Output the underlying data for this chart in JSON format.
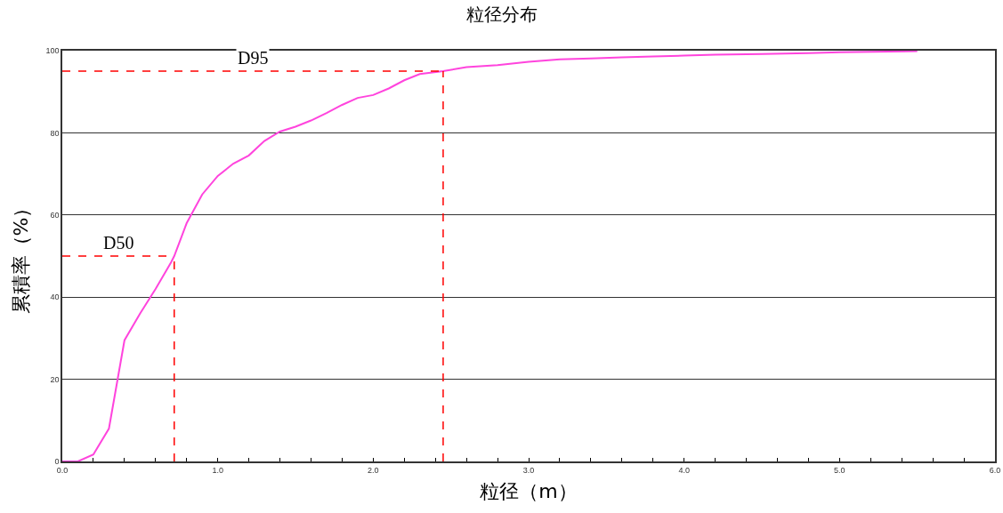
{
  "chart_data": {
    "type": "line",
    "title": "粒径分布",
    "xlabel": "粒径（m）",
    "ylabel": "累積率（%）",
    "x": [
      0,
      0.1,
      0.2,
      0.3,
      0.4,
      0.5,
      0.6,
      0.7,
      0.72,
      0.8,
      0.9,
      1.0,
      1.1,
      1.2,
      1.3,
      1.4,
      1.5,
      1.6,
      1.7,
      1.8,
      1.9,
      2.0,
      2.1,
      2.2,
      2.3,
      2.45,
      2.6,
      2.8,
      3.0,
      3.2,
      3.4,
      3.6,
      3.8,
      4.0,
      4.2,
      4.5,
      4.8,
      5.0,
      5.5
    ],
    "series": [
      {
        "color": "#ff44dd",
        "values": [
          0,
          0,
          1.7,
          8,
          29.5,
          36,
          42,
          48.5,
          50,
          58,
          65,
          69.5,
          72.5,
          74.5,
          78,
          80.3,
          81.5,
          83,
          84.8,
          86.8,
          88.5,
          89.2,
          90.8,
          92.8,
          94.3,
          95,
          96,
          96.5,
          97.3,
          97.9,
          98.1,
          98.4,
          98.6,
          98.8,
          99,
          99.2,
          99.4,
          99.6,
          99.9
        ]
      }
    ],
    "xlim": [
      0,
      6
    ],
    "ylim": [
      0,
      100
    ],
    "xticks": [
      {
        "value": 0,
        "label": "0.0"
      },
      {
        "value": 0.2,
        "label": null
      },
      {
        "value": 0.4,
        "label": null
      },
      {
        "value": 0.6,
        "label": null
      },
      {
        "value": 0.8,
        "label": null
      },
      {
        "value": 1,
        "label": "1.0"
      },
      {
        "value": 1.2,
        "label": null
      },
      {
        "value": 1.4,
        "label": null
      },
      {
        "value": 1.6,
        "label": null
      },
      {
        "value": 1.8,
        "label": null
      },
      {
        "value": 2,
        "label": "2.0"
      },
      {
        "value": 2.2,
        "label": null
      },
      {
        "value": 2.4,
        "label": null
      },
      {
        "value": 2.6,
        "label": null
      },
      {
        "value": 2.8,
        "label": null
      },
      {
        "value": 3,
        "label": "3.0"
      },
      {
        "value": 3.2,
        "label": null
      },
      {
        "value": 3.4,
        "label": null
      },
      {
        "value": 3.6,
        "label": null
      },
      {
        "value": 3.8,
        "label": null
      },
      {
        "value": 4,
        "label": "4.0"
      },
      {
        "value": 4.2,
        "label": null
      },
      {
        "value": 4.4,
        "label": null
      },
      {
        "value": 4.6,
        "label": null
      },
      {
        "value": 4.8,
        "label": null
      },
      {
        "value": 5,
        "label": "5.0"
      },
      {
        "value": 5.2,
        "label": null
      },
      {
        "value": 5.4,
        "label": null
      },
      {
        "value": 5.6,
        "label": null
      },
      {
        "value": 5.8,
        "label": null
      },
      {
        "value": 6,
        "label": "6.0"
      }
    ],
    "yticks": [
      0,
      20,
      40,
      60,
      80,
      100
    ],
    "grid": "y",
    "marker": "none",
    "line_style": "solid",
    "ref_lines": [
      {
        "axis": "y",
        "value": 50,
        "label": "D50",
        "color": "#ff0000",
        "line_style": "dashed"
      },
      {
        "axis": "x",
        "value": 0.72,
        "color": "#ff0000",
        "line_style": "dashed"
      },
      {
        "axis": "y",
        "value": 95,
        "label": "D95",
        "color": "#ff0000",
        "line_style": "dashed"
      },
      {
        "axis": "x",
        "value": 2.45,
        "color": "#ff0000",
        "line_style": "dashed"
      }
    ]
  }
}
